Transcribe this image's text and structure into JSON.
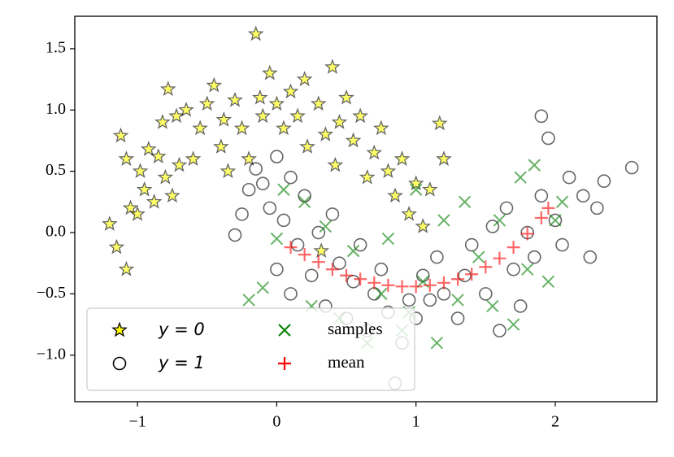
{
  "chart_data": {
    "type": "scatter",
    "xlim": [
      -1.45,
      2.73
    ],
    "ylim": [
      -1.38,
      1.765
    ],
    "xticks": [
      {
        "value": -1,
        "label": "−1"
      },
      0,
      1,
      2
    ],
    "yticks": [
      {
        "value": -1.0,
        "label": "−1.0"
      },
      {
        "value": -0.5,
        "label": "−0.5"
      },
      {
        "value": 0.0,
        "label": "0.0"
      },
      0.5,
      {
        "value": 1.0,
        "label": "1.0"
      },
      1.5
    ],
    "grid": false,
    "legend": "lower left",
    "series": [
      {
        "name": "y = 0",
        "marker": "star",
        "color": "yellow",
        "x": [
          -1.2,
          -1.15,
          -1.12,
          -1.08,
          -1.05,
          -1.0,
          -0.98,
          -0.95,
          -0.92,
          -0.88,
          -0.85,
          -0.82,
          -0.8,
          -0.78,
          -0.75,
          -0.72,
          -0.7,
          -0.65,
          -0.6,
          -0.55,
          -0.5,
          -0.45,
          -0.4,
          -0.38,
          -0.35,
          -0.3,
          -0.25,
          -0.2,
          -0.15,
          -0.12,
          -0.1,
          -0.05,
          0.0,
          0.05,
          0.1,
          0.15,
          0.2,
          0.22,
          0.3,
          0.35,
          0.4,
          0.42,
          0.45,
          0.5,
          0.55,
          0.6,
          0.65,
          0.7,
          0.75,
          0.8,
          0.85,
          0.9,
          0.95,
          1.0,
          1.05,
          1.1,
          1.2,
          1.17,
          0.32,
          -1.08
        ],
        "values": [
          0.07,
          -0.12,
          0.79,
          -0.3,
          0.2,
          0.15,
          0.5,
          0.35,
          0.68,
          0.25,
          0.62,
          0.9,
          0.45,
          1.17,
          0.3,
          0.95,
          0.55,
          1.0,
          0.6,
          0.85,
          1.05,
          1.2,
          0.7,
          0.92,
          0.5,
          1.08,
          0.85,
          0.6,
          1.62,
          1.1,
          0.95,
          1.3,
          1.05,
          0.85,
          1.15,
          0.95,
          1.25,
          0.7,
          1.05,
          0.8,
          1.35,
          0.55,
          0.9,
          1.1,
          0.75,
          0.95,
          0.45,
          0.65,
          0.85,
          0.5,
          0.3,
          0.6,
          0.15,
          0.4,
          0.05,
          0.35,
          0.6,
          0.89,
          -0.15,
          0.6
        ]
      },
      {
        "name": "y = 1",
        "marker": "circle",
        "color": "black",
        "x": [
          -0.3,
          -0.25,
          -0.2,
          -0.15,
          -0.1,
          -0.05,
          0.0,
          0.0,
          0.05,
          0.1,
          0.1,
          0.15,
          0.2,
          0.25,
          0.3,
          0.35,
          0.4,
          0.45,
          0.5,
          0.55,
          0.6,
          0.65,
          0.7,
          0.75,
          0.8,
          0.85,
          0.9,
          0.95,
          1.0,
          1.05,
          1.1,
          1.15,
          1.2,
          1.3,
          1.35,
          1.4,
          1.5,
          1.55,
          1.6,
          1.65,
          1.7,
          1.75,
          1.8,
          1.85,
          1.9,
          1.9,
          1.95,
          2.0,
          2.05,
          2.1,
          2.2,
          2.25,
          2.3,
          2.35,
          2.55
        ],
        "values": [
          -0.02,
          0.15,
          0.35,
          0.52,
          0.4,
          0.2,
          0.62,
          -0.3,
          0.1,
          0.45,
          -0.5,
          -0.1,
          0.3,
          -0.35,
          0.0,
          -0.6,
          0.15,
          -0.25,
          -0.7,
          -0.4,
          -0.1,
          -0.8,
          -0.5,
          -0.3,
          -0.65,
          -1.23,
          -0.9,
          -0.55,
          -0.7,
          -0.35,
          -0.55,
          -0.2,
          -0.5,
          -0.7,
          -0.35,
          -0.1,
          -0.5,
          0.05,
          -0.8,
          0.2,
          -0.3,
          -0.6,
          0.0,
          -0.2,
          0.3,
          0.95,
          0.77,
          0.1,
          -0.1,
          0.45,
          0.3,
          -0.2,
          0.2,
          0.42,
          0.53
        ]
      },
      {
        "name": "samples",
        "marker": "x",
        "color": "green",
        "x": [
          -0.2,
          -0.1,
          0.0,
          0.05,
          0.2,
          0.25,
          0.35,
          0.45,
          0.55,
          0.65,
          0.75,
          0.8,
          0.9,
          1.0,
          1.05,
          1.15,
          1.2,
          1.3,
          1.35,
          1.45,
          1.55,
          1.6,
          1.7,
          1.75,
          1.8,
          1.85,
          1.95,
          2.0,
          2.05,
          0.95
        ],
        "values": [
          -0.55,
          -0.45,
          -0.05,
          0.35,
          0.25,
          -0.6,
          0.05,
          -0.7,
          -0.15,
          -0.9,
          -0.5,
          -0.05,
          -0.8,
          0.35,
          -0.4,
          -0.9,
          0.1,
          -0.55,
          0.25,
          -0.2,
          -0.6,
          0.1,
          -0.75,
          0.45,
          -0.3,
          0.55,
          -0.4,
          0.1,
          0.25,
          -0.65
        ]
      },
      {
        "name": "mean",
        "marker": "plus",
        "color": "red",
        "x": [
          0.1,
          0.2,
          0.3,
          0.4,
          0.5,
          0.6,
          0.7,
          0.8,
          0.9,
          1.0,
          1.1,
          1.2,
          1.3,
          1.4,
          1.5,
          1.6,
          1.7,
          1.8,
          1.9,
          1.95
        ],
        "values": [
          -0.12,
          -0.18,
          -0.24,
          -0.3,
          -0.35,
          -0.38,
          -0.41,
          -0.43,
          -0.44,
          -0.44,
          -0.43,
          -0.41,
          -0.38,
          -0.34,
          -0.28,
          -0.21,
          -0.12,
          -0.01,
          0.12,
          0.2
        ]
      }
    ]
  }
}
